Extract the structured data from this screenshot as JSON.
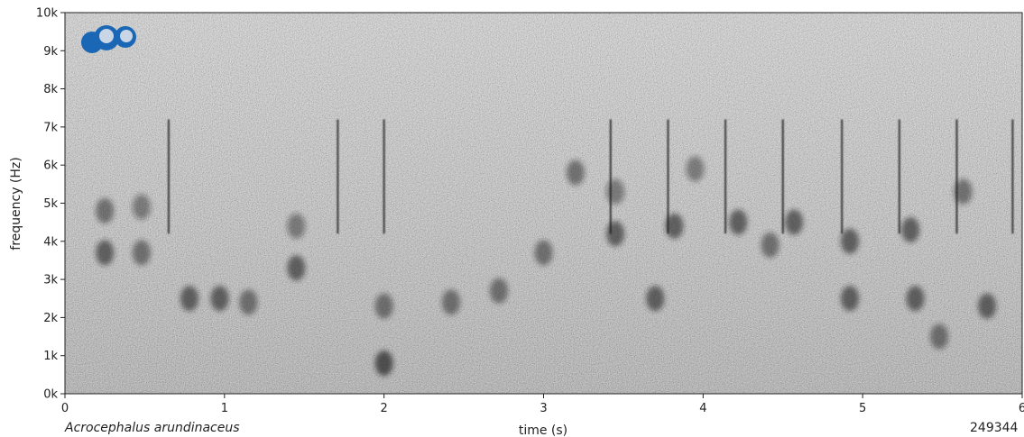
{
  "chart_data": {
    "type": "heatmap",
    "subtype": "spectrogram",
    "colormap": "grayscale",
    "xlabel": "time (s)",
    "ylabel": "frequency (Hz)",
    "xlim": [
      0,
      6
    ],
    "ylim": [
      0,
      10000
    ],
    "x_ticks": [
      0,
      1,
      2,
      3,
      4,
      5,
      6
    ],
    "x_tick_labels": [
      "0",
      "1",
      "2",
      "3",
      "4",
      "5",
      "6"
    ],
    "y_ticks": [
      0,
      1000,
      2000,
      3000,
      4000,
      5000,
      6000,
      7000,
      8000,
      9000,
      10000
    ],
    "y_tick_labels": [
      "0k",
      "1k",
      "2k",
      "3k",
      "4k",
      "5k",
      "6k",
      "7k",
      "8k",
      "9k",
      "10k"
    ],
    "vertical_clicks_s": [
      0.65,
      1.71,
      2.0,
      3.42,
      3.78,
      4.14,
      4.5,
      4.87,
      5.23,
      5.59,
      5.94
    ],
    "energy_blobs": [
      {
        "t": 0.25,
        "f": 4800,
        "d": 0.6
      },
      {
        "t": 0.25,
        "f": 3700,
        "d": 0.7
      },
      {
        "t": 0.48,
        "f": 3700,
        "d": 0.6
      },
      {
        "t": 0.48,
        "f": 4900,
        "d": 0.5
      },
      {
        "t": 0.78,
        "f": 2500,
        "d": 0.7
      },
      {
        "t": 0.97,
        "f": 2500,
        "d": 0.7
      },
      {
        "t": 1.15,
        "f": 2400,
        "d": 0.6
      },
      {
        "t": 1.45,
        "f": 3300,
        "d": 0.7
      },
      {
        "t": 1.45,
        "f": 4400,
        "d": 0.5
      },
      {
        "t": 2.0,
        "f": 800,
        "d": 0.8
      },
      {
        "t": 2.0,
        "f": 2300,
        "d": 0.6
      },
      {
        "t": 2.42,
        "f": 2400,
        "d": 0.6
      },
      {
        "t": 2.72,
        "f": 2700,
        "d": 0.6
      },
      {
        "t": 3.0,
        "f": 3700,
        "d": 0.6
      },
      {
        "t": 3.2,
        "f": 5800,
        "d": 0.6
      },
      {
        "t": 3.45,
        "f": 4200,
        "d": 0.7
      },
      {
        "t": 3.45,
        "f": 5300,
        "d": 0.5
      },
      {
        "t": 3.7,
        "f": 2500,
        "d": 0.7
      },
      {
        "t": 3.82,
        "f": 4400,
        "d": 0.7
      },
      {
        "t": 4.22,
        "f": 4500,
        "d": 0.7
      },
      {
        "t": 4.42,
        "f": 3900,
        "d": 0.6
      },
      {
        "t": 4.57,
        "f": 4500,
        "d": 0.7
      },
      {
        "t": 4.92,
        "f": 4000,
        "d": 0.7
      },
      {
        "t": 4.92,
        "f": 2500,
        "d": 0.7
      },
      {
        "t": 5.3,
        "f": 4300,
        "d": 0.7
      },
      {
        "t": 5.33,
        "f": 2500,
        "d": 0.7
      },
      {
        "t": 5.48,
        "f": 1500,
        "d": 0.6
      },
      {
        "t": 5.63,
        "f": 5300,
        "d": 0.6
      },
      {
        "t": 5.78,
        "f": 2300,
        "d": 0.7
      },
      {
        "t": 3.95,
        "f": 5900,
        "d": 0.5
      }
    ]
  },
  "species": "Acrocephalus arundinaceus",
  "catalog_number": "249344",
  "logo": {
    "icon": "xeno-canto-logo-icon",
    "color": "#1a67b5"
  }
}
